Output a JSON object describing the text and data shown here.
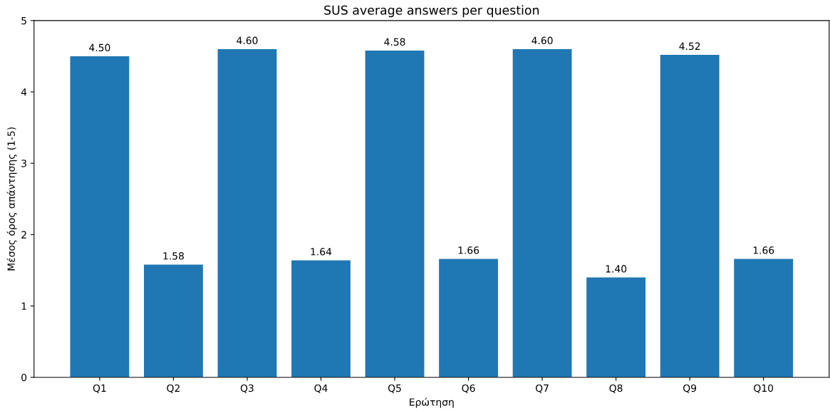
{
  "chart_data": {
    "type": "bar",
    "title": "SUS average answers per question",
    "xlabel": "Ερώτηση",
    "ylabel": "Μέσος όρος απάντησης (1-5)",
    "categories": [
      "Q1",
      "Q2",
      "Q3",
      "Q4",
      "Q5",
      "Q6",
      "Q7",
      "Q8",
      "Q9",
      "Q10"
    ],
    "values": [
      4.5,
      1.58,
      4.6,
      1.64,
      4.58,
      1.66,
      4.6,
      1.4,
      4.52,
      1.66
    ],
    "value_labels": [
      "4.50",
      "1.58",
      "4.60",
      "1.64",
      "4.58",
      "1.66",
      "4.60",
      "1.40",
      "4.52",
      "1.66"
    ],
    "color": "#1f77b4",
    "ylim": [
      0,
      5
    ],
    "yticks": [
      0,
      1,
      2,
      3,
      4,
      5
    ],
    "grid": false
  }
}
